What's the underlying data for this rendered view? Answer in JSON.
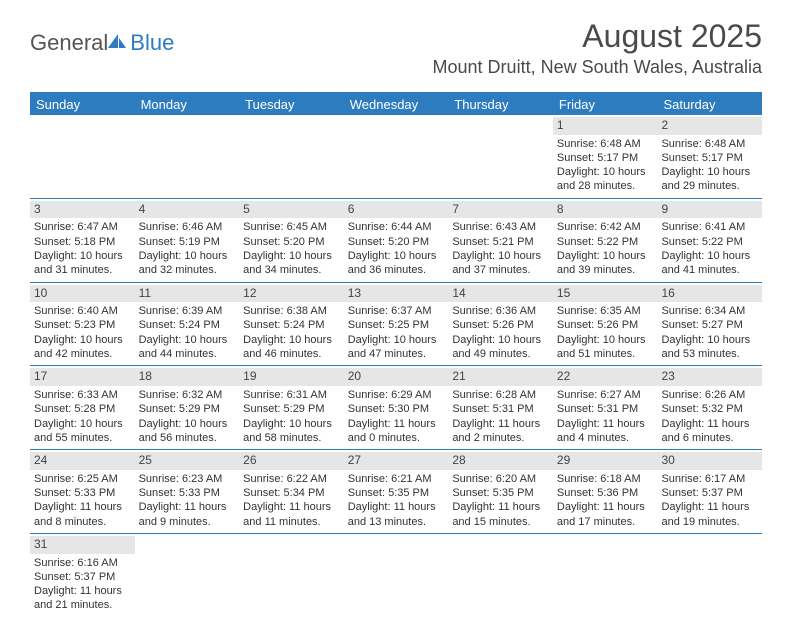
{
  "logo": {
    "general": "General",
    "blue": "Blue"
  },
  "title": "August 2025",
  "location": "Mount Druitt, New South Wales, Australia",
  "dayNames": [
    "Sunday",
    "Monday",
    "Tuesday",
    "Wednesday",
    "Thursday",
    "Friday",
    "Saturday"
  ],
  "colors": {
    "accent": "#2e7cc0",
    "headerText": "#ffffff",
    "daynumBg": "#e6e6e6"
  },
  "weeks": [
    [
      null,
      null,
      null,
      null,
      null,
      {
        "n": "1",
        "sr": "Sunrise: 6:48 AM",
        "ss": "Sunset: 5:17 PM",
        "d1": "Daylight: 10 hours",
        "d2": "and 28 minutes."
      },
      {
        "n": "2",
        "sr": "Sunrise: 6:48 AM",
        "ss": "Sunset: 5:17 PM",
        "d1": "Daylight: 10 hours",
        "d2": "and 29 minutes."
      }
    ],
    [
      {
        "n": "3",
        "sr": "Sunrise: 6:47 AM",
        "ss": "Sunset: 5:18 PM",
        "d1": "Daylight: 10 hours",
        "d2": "and 31 minutes."
      },
      {
        "n": "4",
        "sr": "Sunrise: 6:46 AM",
        "ss": "Sunset: 5:19 PM",
        "d1": "Daylight: 10 hours",
        "d2": "and 32 minutes."
      },
      {
        "n": "5",
        "sr": "Sunrise: 6:45 AM",
        "ss": "Sunset: 5:20 PM",
        "d1": "Daylight: 10 hours",
        "d2": "and 34 minutes."
      },
      {
        "n": "6",
        "sr": "Sunrise: 6:44 AM",
        "ss": "Sunset: 5:20 PM",
        "d1": "Daylight: 10 hours",
        "d2": "and 36 minutes."
      },
      {
        "n": "7",
        "sr": "Sunrise: 6:43 AM",
        "ss": "Sunset: 5:21 PM",
        "d1": "Daylight: 10 hours",
        "d2": "and 37 minutes."
      },
      {
        "n": "8",
        "sr": "Sunrise: 6:42 AM",
        "ss": "Sunset: 5:22 PM",
        "d1": "Daylight: 10 hours",
        "d2": "and 39 minutes."
      },
      {
        "n": "9",
        "sr": "Sunrise: 6:41 AM",
        "ss": "Sunset: 5:22 PM",
        "d1": "Daylight: 10 hours",
        "d2": "and 41 minutes."
      }
    ],
    [
      {
        "n": "10",
        "sr": "Sunrise: 6:40 AM",
        "ss": "Sunset: 5:23 PM",
        "d1": "Daylight: 10 hours",
        "d2": "and 42 minutes."
      },
      {
        "n": "11",
        "sr": "Sunrise: 6:39 AM",
        "ss": "Sunset: 5:24 PM",
        "d1": "Daylight: 10 hours",
        "d2": "and 44 minutes."
      },
      {
        "n": "12",
        "sr": "Sunrise: 6:38 AM",
        "ss": "Sunset: 5:24 PM",
        "d1": "Daylight: 10 hours",
        "d2": "and 46 minutes."
      },
      {
        "n": "13",
        "sr": "Sunrise: 6:37 AM",
        "ss": "Sunset: 5:25 PM",
        "d1": "Daylight: 10 hours",
        "d2": "and 47 minutes."
      },
      {
        "n": "14",
        "sr": "Sunrise: 6:36 AM",
        "ss": "Sunset: 5:26 PM",
        "d1": "Daylight: 10 hours",
        "d2": "and 49 minutes."
      },
      {
        "n": "15",
        "sr": "Sunrise: 6:35 AM",
        "ss": "Sunset: 5:26 PM",
        "d1": "Daylight: 10 hours",
        "d2": "and 51 minutes."
      },
      {
        "n": "16",
        "sr": "Sunrise: 6:34 AM",
        "ss": "Sunset: 5:27 PM",
        "d1": "Daylight: 10 hours",
        "d2": "and 53 minutes."
      }
    ],
    [
      {
        "n": "17",
        "sr": "Sunrise: 6:33 AM",
        "ss": "Sunset: 5:28 PM",
        "d1": "Daylight: 10 hours",
        "d2": "and 55 minutes."
      },
      {
        "n": "18",
        "sr": "Sunrise: 6:32 AM",
        "ss": "Sunset: 5:29 PM",
        "d1": "Daylight: 10 hours",
        "d2": "and 56 minutes."
      },
      {
        "n": "19",
        "sr": "Sunrise: 6:31 AM",
        "ss": "Sunset: 5:29 PM",
        "d1": "Daylight: 10 hours",
        "d2": "and 58 minutes."
      },
      {
        "n": "20",
        "sr": "Sunrise: 6:29 AM",
        "ss": "Sunset: 5:30 PM",
        "d1": "Daylight: 11 hours",
        "d2": "and 0 minutes."
      },
      {
        "n": "21",
        "sr": "Sunrise: 6:28 AM",
        "ss": "Sunset: 5:31 PM",
        "d1": "Daylight: 11 hours",
        "d2": "and 2 minutes."
      },
      {
        "n": "22",
        "sr": "Sunrise: 6:27 AM",
        "ss": "Sunset: 5:31 PM",
        "d1": "Daylight: 11 hours",
        "d2": "and 4 minutes."
      },
      {
        "n": "23",
        "sr": "Sunrise: 6:26 AM",
        "ss": "Sunset: 5:32 PM",
        "d1": "Daylight: 11 hours",
        "d2": "and 6 minutes."
      }
    ],
    [
      {
        "n": "24",
        "sr": "Sunrise: 6:25 AM",
        "ss": "Sunset: 5:33 PM",
        "d1": "Daylight: 11 hours",
        "d2": "and 8 minutes."
      },
      {
        "n": "25",
        "sr": "Sunrise: 6:23 AM",
        "ss": "Sunset: 5:33 PM",
        "d1": "Daylight: 11 hours",
        "d2": "and 9 minutes."
      },
      {
        "n": "26",
        "sr": "Sunrise: 6:22 AM",
        "ss": "Sunset: 5:34 PM",
        "d1": "Daylight: 11 hours",
        "d2": "and 11 minutes."
      },
      {
        "n": "27",
        "sr": "Sunrise: 6:21 AM",
        "ss": "Sunset: 5:35 PM",
        "d1": "Daylight: 11 hours",
        "d2": "and 13 minutes."
      },
      {
        "n": "28",
        "sr": "Sunrise: 6:20 AM",
        "ss": "Sunset: 5:35 PM",
        "d1": "Daylight: 11 hours",
        "d2": "and 15 minutes."
      },
      {
        "n": "29",
        "sr": "Sunrise: 6:18 AM",
        "ss": "Sunset: 5:36 PM",
        "d1": "Daylight: 11 hours",
        "d2": "and 17 minutes."
      },
      {
        "n": "30",
        "sr": "Sunrise: 6:17 AM",
        "ss": "Sunset: 5:37 PM",
        "d1": "Daylight: 11 hours",
        "d2": "and 19 minutes."
      }
    ],
    [
      {
        "n": "31",
        "sr": "Sunrise: 6:16 AM",
        "ss": "Sunset: 5:37 PM",
        "d1": "Daylight: 11 hours",
        "d2": "and 21 minutes."
      },
      null,
      null,
      null,
      null,
      null,
      null
    ]
  ]
}
